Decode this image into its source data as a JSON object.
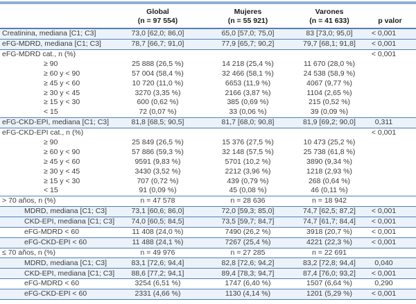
{
  "colors": {
    "rule_line_blue": "#4d7fba",
    "top_bar_blue": "#8fafd6",
    "row_tint_blue": "#ebf2f9",
    "text": "#3c3c3c"
  },
  "table": {
    "columns": [
      {
        "label": "",
        "sub": ""
      },
      {
        "label": "Global",
        "sub": "(n = 97 554)"
      },
      {
        "label": "Mujeres",
        "sub": "(n = 55 921)"
      },
      {
        "label": "Varones",
        "sub": "(n = 41 633)"
      },
      {
        "label": "p valor",
        "sub": ""
      }
    ],
    "rows": [
      {
        "label": "Creatinina, mediana [C1; C3]",
        "indent": 0,
        "tint": true,
        "line": true,
        "global": "73,0 [62,0; 86,0]",
        "mujeres": "65,0 [57,0; 75,0]",
        "varones": "83 [73,0; 95,0]",
        "p": "< 0,001"
      },
      {
        "label": "eFG-MDRD, mediana [C1; C3]",
        "indent": 0,
        "tint": true,
        "line": true,
        "global": "78,7 [66,7; 91,0]",
        "mujeres": "77,9 [65,7; 90,2]",
        "varones": "79,7 [68,1; 91,8]",
        "p": "< 0,001"
      },
      {
        "label": "eFG-MDRD cat., n (%)",
        "indent": 0,
        "tint": false,
        "line": false,
        "global": "",
        "mujeres": "",
        "varones": "",
        "p": "< 0,001"
      },
      {
        "label": "≥ 90",
        "indent": 2,
        "tint": false,
        "line": false,
        "global": "25 888 (26,5 %)",
        "mujeres": "14 218 (25,4 %)",
        "varones": "11 670 (28,0 %)",
        "p": ""
      },
      {
        "label": "≥ 60 y < 90",
        "indent": 2,
        "tint": false,
        "line": false,
        "global": "57 004 (58,4 %)",
        "mujeres": "32 466 (58,1 %)",
        "varones": "24 538 (58,9 %)",
        "p": ""
      },
      {
        "label": "≥ 45 y < 60",
        "indent": 2,
        "tint": false,
        "line": false,
        "global": "10 720 (11,0 %)",
        "mujeres": "6653 (11,9 %)",
        "varones": "4067 (9,77 %)",
        "p": ""
      },
      {
        "label": "≥ 30 y < 45",
        "indent": 2,
        "tint": false,
        "line": false,
        "global": "3270 (3,35 %)",
        "mujeres": "2166 (3,87 %)",
        "varones": "1104 (2,65 %)",
        "p": ""
      },
      {
        "label": "≥ 15 y < 30",
        "indent": 2,
        "tint": false,
        "line": false,
        "global": "600 (0,62 %)",
        "mujeres": "385 (0,69 %)",
        "varones": "215 (0,52 %)",
        "p": ""
      },
      {
        "label": "< 15",
        "indent": 2,
        "tint": false,
        "line": true,
        "global": "72 (0,07 %)",
        "mujeres": "33 (0,06 %)",
        "varones": "39 (0,09 %)",
        "p": ""
      },
      {
        "label": "eFG-CKD-EPI, mediana [C1; C3]",
        "indent": 0,
        "tint": true,
        "line": true,
        "global": "81,8 [68,5; 90,5]",
        "mujeres": "81,7 [68,0; 90,8]",
        "varones": "81,9 [69,2; 90,0]",
        "p": "0,311"
      },
      {
        "label": "eFG-CKD-EPI cat., n (%)",
        "indent": 0,
        "tint": false,
        "line": false,
        "global": "",
        "mujeres": "",
        "varones": "",
        "p": "< 0,001"
      },
      {
        "label": "≥ 90",
        "indent": 2,
        "tint": false,
        "line": false,
        "global": "25 849 (26,5 %)",
        "mujeres": "15 376 (27,5 %)",
        "varones": "10 473 (25,2 %)",
        "p": ""
      },
      {
        "label": "≥ 60 y < 90",
        "indent": 2,
        "tint": false,
        "line": false,
        "global": "57 886 (59,3 %)",
        "mujeres": "32 148 (57,5 %)",
        "varones": "25 738 (61,8 %)",
        "p": ""
      },
      {
        "label": "≥ 45 y < 60",
        "indent": 2,
        "tint": false,
        "line": false,
        "global": "9591 (9,83 %)",
        "mujeres": "5701 (10,2 %)",
        "varones": "3890 (9,34 %)",
        "p": ""
      },
      {
        "label": "≥ 30 y < 45",
        "indent": 2,
        "tint": false,
        "line": false,
        "global": "3430 (3,52 %)",
        "mujeres": "2212 (3,96 %)",
        "varones": "1218 (2,93 %)",
        "p": ""
      },
      {
        "label": "≥ 15 y < 30",
        "indent": 2,
        "tint": false,
        "line": false,
        "global": "707 (0,72 %)",
        "mujeres": "439 (0,79 %)",
        "varones": "268 (0,64 %)",
        "p": ""
      },
      {
        "label": "< 15",
        "indent": 2,
        "tint": false,
        "line": true,
        "global": "91 (0,09 %)",
        "mujeres": "45 (0,08 %)",
        "varones": "46 (0,11 %)",
        "p": ""
      },
      {
        "label": "> 70 años, n (%)",
        "indent": 0,
        "tint": false,
        "line": true,
        "global": "n = 47 578",
        "mujeres": "n = 28 636",
        "varones": "n = 18 942",
        "p": ""
      },
      {
        "label": "MDRD, mediana [C1; C3]",
        "indent": 1,
        "tint": true,
        "line": true,
        "global": "73,1 [60,6; 86,0]",
        "mujeres": "72,0 [59,3; 85,0]",
        "varones": "74,7 [62,5; 87,2]",
        "p": "< 0,001"
      },
      {
        "label": "CKD-EPI, mediana [C1; C3]",
        "indent": 1,
        "tint": true,
        "line": true,
        "global": "74,0 [60,5; 84,5]",
        "mujeres": "73,5 [59,7; 84,7]",
        "varones": "74,7 [61,7; 84,4]",
        "p": "< 0,001"
      },
      {
        "label": "eFG-MDRD < 60",
        "indent": 1,
        "tint": false,
        "line": true,
        "global": "11 408 (24,0 %)",
        "mujeres": "7490 (26,2 %)",
        "varones": "3918 (20,7 %)",
        "p": "< 0,001"
      },
      {
        "label": "eFG-CKD-EPI < 60",
        "indent": 1,
        "tint": true,
        "line": true,
        "global": "11 488 (24,1 %)",
        "mujeres": "7267 (25,4 %)",
        "varones": "4221 (22,3 %)",
        "p": "< 0,001"
      },
      {
        "label": "≤ 70 años, n (%)",
        "indent": 0,
        "tint": false,
        "line": true,
        "global": "n = 49 976",
        "mujeres": "n = 27 285",
        "varones": "n = 22 691",
        "p": ""
      },
      {
        "label": "MDRD, mediana [C1; C3]",
        "indent": 1,
        "tint": true,
        "line": true,
        "global": "83,1 [72,6; 94,4]",
        "mujeres": "82,8 [72,6; 94,2]",
        "varones": "83,2 [72,8; 94,4]",
        "p": "0,040"
      },
      {
        "label": "CKD-EPI, mediana [C1; C3]",
        "indent": 1,
        "tint": true,
        "line": true,
        "global": "88,6 [77,2; 94,1]",
        "mujeres": "89,4 [78,3; 94,7]",
        "varones": "87,4 [76,0; 93,2]",
        "p": "< 0,001"
      },
      {
        "label": "eFG-MDRD < 60",
        "indent": 1,
        "tint": false,
        "line": true,
        "global": "3254 (6,51 %)",
        "mujeres": "1747 (6,40 %)",
        "varones": "1507 (6,64 %)",
        "p": "0,290"
      },
      {
        "label": "eFG-CKD-EPI < 60",
        "indent": 1,
        "tint": true,
        "line": true,
        "global": "2331 (4,66 %)",
        "mujeres": "1130 (4,14 %)",
        "varones": "1201 (5,29 %)",
        "p": "< 0,001"
      }
    ]
  }
}
